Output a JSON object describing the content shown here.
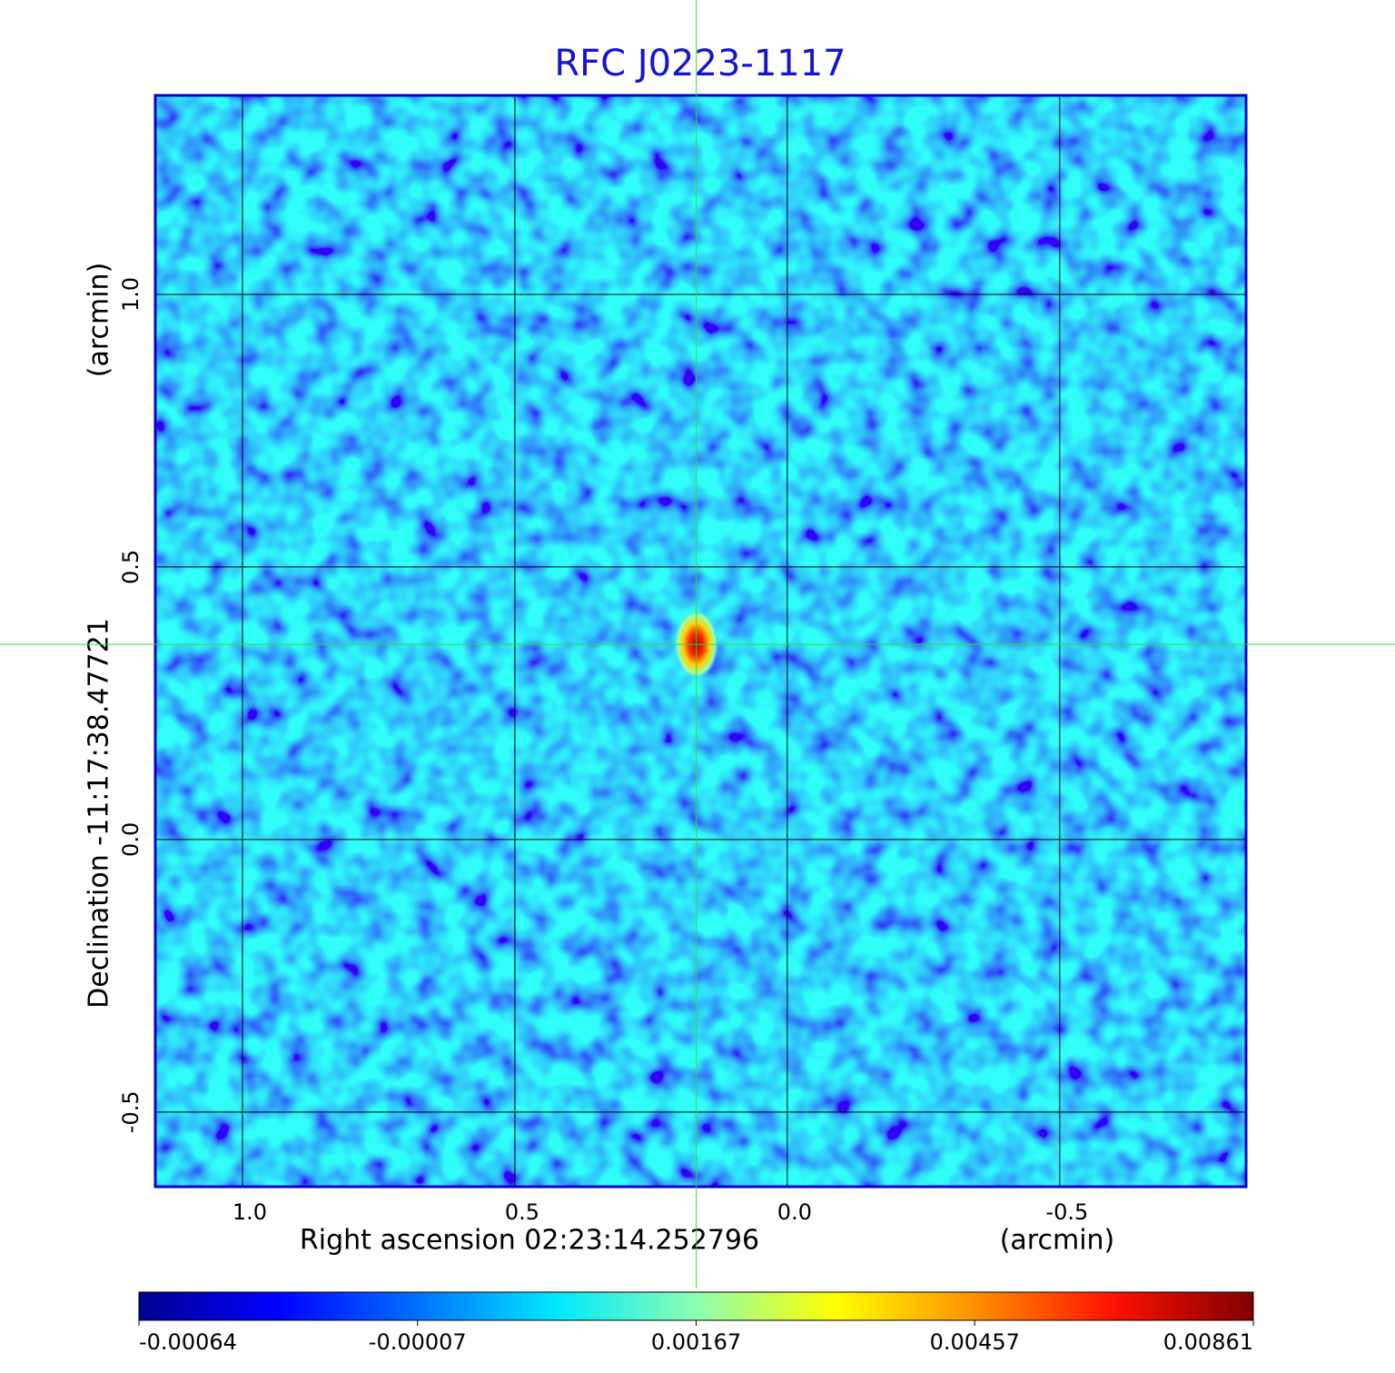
{
  "chart_data": {
    "type": "image",
    "title": "RFC J0223-1117",
    "xlabel": "Right ascension  02:23:14.252796",
    "xunit": "(arcmin)",
    "ylabel": "Declination  -11:17:38.47721",
    "yunit": "(arcmin)",
    "xlim": [
      1.16,
      -0.842
    ],
    "ylim": [
      -0.637,
      1.365
    ],
    "xticks": [
      {
        "value": 1,
        "label": "1.0"
      },
      0.5,
      {
        "value": 0,
        "label": "0.0"
      },
      -0.5
    ],
    "yticks": [
      {
        "value": 1,
        "label": "1.0"
      },
      0.5,
      {
        "value": 0,
        "label": "0.0"
      },
      -0.5
    ],
    "grid": true,
    "source": {
      "x": 0.167,
      "y": 0.358
    },
    "colorbar": {
      "ticks": [
        -0.00064,
        -7e-05,
        0.00167,
        0.00457,
        0.00861
      ],
      "colors": [
        "#00008f",
        "#0000ff",
        "#0070ff",
        "#00e8ff",
        "#8cffb0",
        "#ffff00",
        "#ff9000",
        "#ff1000",
        "#800000"
      ]
    }
  }
}
